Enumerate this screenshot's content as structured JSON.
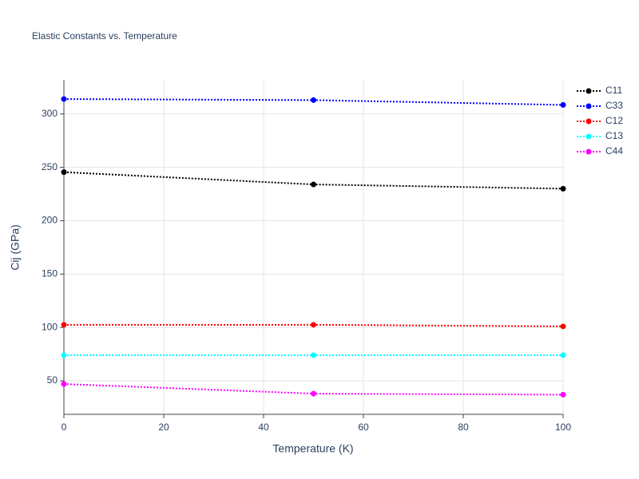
{
  "chart_data": {
    "type": "line",
    "title": "Elastic Constants vs. Temperature",
    "x_label": "Temperature (K)",
    "y_label": "Cij (GPa)",
    "x": [
      0,
      50,
      100
    ],
    "series": [
      {
        "name": "C11",
        "color": "#000000",
        "values": [
          245.5,
          234,
          230
        ]
      },
      {
        "name": "C33",
        "color": "#0000ff",
        "values": [
          314,
          313,
          308.5
        ]
      },
      {
        "name": "C12",
        "color": "#ff0000",
        "values": [
          102.5,
          102.5,
          101
        ]
      },
      {
        "name": "C13",
        "color": "#00ffff",
        "values": [
          74,
          74,
          74
        ]
      },
      {
        "name": "C44",
        "color": "#ff00ff",
        "values": [
          47,
          38,
          37
        ]
      }
    ],
    "xlim": [
      0,
      100
    ],
    "xticks": [
      0,
      20,
      40,
      60,
      80,
      100
    ],
    "ylim": [
      18.6,
      332
    ],
    "yticks": [
      50,
      100,
      150,
      200,
      250,
      300
    ],
    "grid": true,
    "legend": "top-right"
  }
}
